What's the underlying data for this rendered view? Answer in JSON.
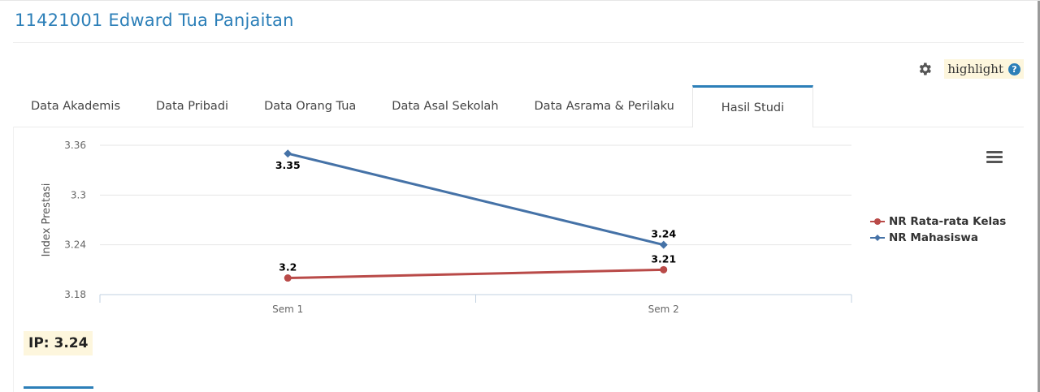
{
  "header": {
    "title": "11421001 Edward Tua Panjaitan"
  },
  "toolbar": {
    "settings_icon": "gear-icon",
    "highlight_label": "highlight",
    "help_icon": "question-circle-icon",
    "help_glyph": "?"
  },
  "tabs": [
    {
      "label": "Data Akademis",
      "active": false
    },
    {
      "label": "Data Pribadi",
      "active": false
    },
    {
      "label": "Data Orang Tua",
      "active": false
    },
    {
      "label": "Data Asal Sekolah",
      "active": false
    },
    {
      "label": "Data Asrama & Perilaku",
      "active": false
    },
    {
      "label": "Hasil Studi",
      "active": true
    }
  ],
  "chart_menu_icon": "hamburger-menu-icon",
  "chart_data": {
    "type": "line",
    "categories": [
      "Sem 1",
      "Sem 2"
    ],
    "ylabel": "Index Prestasi",
    "xlabel": "",
    "ylim": [
      3.18,
      3.36
    ],
    "yticks": [
      "3.18",
      "3.24",
      "3.3",
      "3.36"
    ],
    "grid": true,
    "legend_position": "right",
    "series": [
      {
        "name": "NR Rata-rata Kelas",
        "values": [
          3.2,
          3.21
        ],
        "labels": [
          "3.2",
          "3.21"
        ],
        "color": "#b94a48",
        "marker": "circle"
      },
      {
        "name": "NR Mahasiswa",
        "values": [
          3.35,
          3.24
        ],
        "labels": [
          "3.35",
          "3.24"
        ],
        "color": "#4572a7",
        "marker": "diamond"
      }
    ]
  },
  "summary": {
    "ip_text": "IP: 3.24"
  },
  "colors": {
    "accent": "#2c7fb8",
    "highlight_bg": "#fdf6dd"
  }
}
